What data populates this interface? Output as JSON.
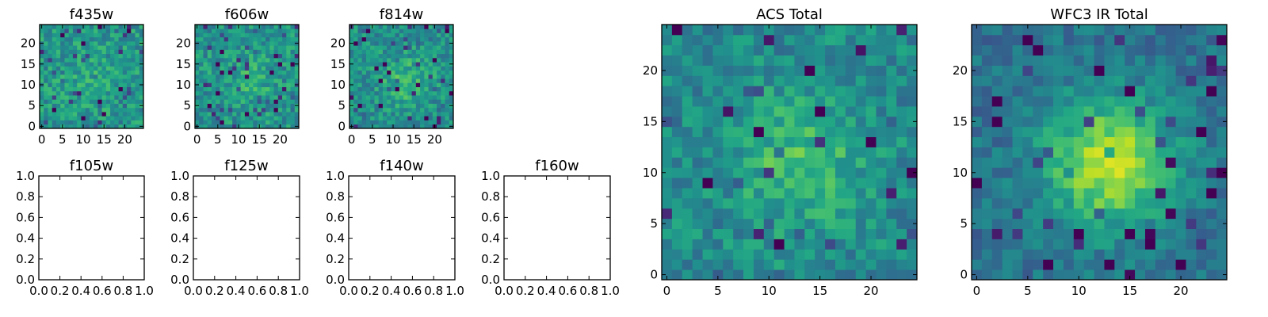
{
  "chart_data": [
    {
      "type": "heatmap",
      "title": "f435w",
      "grid_size": 25,
      "seed": 11,
      "peak": 0.1,
      "xticks": [
        "0",
        "5",
        "10",
        "15",
        "20"
      ],
      "yticks": [
        "0",
        "5",
        "10",
        "15",
        "20"
      ],
      "x_tick_values": [
        0,
        5,
        10,
        15,
        20
      ],
      "y_tick_values": [
        0,
        5,
        10,
        15,
        20
      ],
      "xlim": [
        -0.5,
        24.5
      ],
      "ylim": [
        -0.5,
        24.5
      ]
    },
    {
      "type": "heatmap",
      "title": "f606w",
      "grid_size": 25,
      "seed": 23,
      "peak": 0.15,
      "xticks": [
        "0",
        "5",
        "10",
        "15",
        "20"
      ],
      "yticks": [
        "0",
        "5",
        "10",
        "15",
        "20"
      ],
      "x_tick_values": [
        0,
        5,
        10,
        15,
        20
      ],
      "y_tick_values": [
        0,
        5,
        10,
        15,
        20
      ],
      "xlim": [
        -0.5,
        24.5
      ],
      "ylim": [
        -0.5,
        24.5
      ]
    },
    {
      "type": "heatmap",
      "title": "f814w",
      "grid_size": 25,
      "seed": 37,
      "peak": 0.25,
      "xticks": [
        "0",
        "5",
        "10",
        "15",
        "20"
      ],
      "yticks": [
        "0",
        "5",
        "10",
        "15",
        "20"
      ],
      "x_tick_values": [
        0,
        5,
        10,
        15,
        20
      ],
      "y_tick_values": [
        0,
        5,
        10,
        15,
        20
      ],
      "xlim": [
        -0.5,
        24.5
      ],
      "ylim": [
        -0.5,
        24.5
      ]
    },
    {
      "type": "heatmap",
      "title": "ACS Total",
      "grid_size": 25,
      "seed": 53,
      "peak": 0.35,
      "xticks": [
        "0",
        "5",
        "10",
        "15",
        "20"
      ],
      "yticks": [
        "0",
        "5",
        "10",
        "15",
        "20"
      ],
      "x_tick_values": [
        0,
        5,
        10,
        15,
        20
      ],
      "y_tick_values": [
        0,
        5,
        10,
        15,
        20
      ],
      "xlim": [
        -0.5,
        24.5
      ],
      "ylim": [
        -0.5,
        24.5
      ]
    },
    {
      "type": "heatmap",
      "title": "WFC3 IR Total",
      "grid_size": 25,
      "seed": 71,
      "peak": 0.8,
      "xticks": [
        "0",
        "5",
        "10",
        "15",
        "20"
      ],
      "yticks": [
        "0",
        "5",
        "10",
        "15",
        "20"
      ],
      "x_tick_values": [
        0,
        5,
        10,
        15,
        20
      ],
      "y_tick_values": [
        0,
        5,
        10,
        15,
        20
      ],
      "xlim": [
        -0.5,
        24.5
      ],
      "ylim": [
        -0.5,
        24.5
      ]
    },
    {
      "type": "empty",
      "title": "f105w",
      "xticks": [
        "0.0",
        "0.2",
        "0.4",
        "0.6",
        "0.8",
        "1.0"
      ],
      "yticks": [
        "0.0",
        "0.2",
        "0.4",
        "0.6",
        "0.8",
        "1.0"
      ],
      "x_tick_values": [
        0,
        0.2,
        0.4,
        0.6,
        0.8,
        1.0
      ],
      "y_tick_values": [
        0,
        0.2,
        0.4,
        0.6,
        0.8,
        1.0
      ],
      "xlim": [
        0,
        1
      ],
      "ylim": [
        0,
        1
      ]
    },
    {
      "type": "empty",
      "title": "f125w",
      "xticks": [
        "0.0",
        "0.2",
        "0.4",
        "0.6",
        "0.8",
        "1.0"
      ],
      "yticks": [
        "0.0",
        "0.2",
        "0.4",
        "0.6",
        "0.8",
        "1.0"
      ],
      "x_tick_values": [
        0,
        0.2,
        0.4,
        0.6,
        0.8,
        1.0
      ],
      "y_tick_values": [
        0,
        0.2,
        0.4,
        0.6,
        0.8,
        1.0
      ],
      "xlim": [
        0,
        1
      ],
      "ylim": [
        0,
        1
      ]
    },
    {
      "type": "empty",
      "title": "f140w",
      "xticks": [
        "0.0",
        "0.2",
        "0.4",
        "0.6",
        "0.8",
        "1.0"
      ],
      "yticks": [
        "0.0",
        "0.2",
        "0.4",
        "0.6",
        "0.8",
        "1.0"
      ],
      "x_tick_values": [
        0,
        0.2,
        0.4,
        0.6,
        0.8,
        1.0
      ],
      "y_tick_values": [
        0,
        0.2,
        0.4,
        0.6,
        0.8,
        1.0
      ],
      "xlim": [
        0,
        1
      ],
      "ylim": [
        0,
        1
      ]
    },
    {
      "type": "empty",
      "title": "f160w",
      "xticks": [
        "0.0",
        "0.2",
        "0.4",
        "0.6",
        "0.8",
        "1.0"
      ],
      "yticks": [
        "0.0",
        "0.2",
        "0.4",
        "0.6",
        "0.8",
        "1.0"
      ],
      "x_tick_values": [
        0,
        0.2,
        0.4,
        0.6,
        0.8,
        1.0
      ],
      "y_tick_values": [
        0,
        0.2,
        0.4,
        0.6,
        0.8,
        1.0
      ],
      "xlim": [
        0,
        1
      ],
      "ylim": [
        0,
        1
      ]
    }
  ],
  "colors": {
    "axes": "#000000",
    "background": "#ffffff",
    "colormap": "viridis"
  }
}
